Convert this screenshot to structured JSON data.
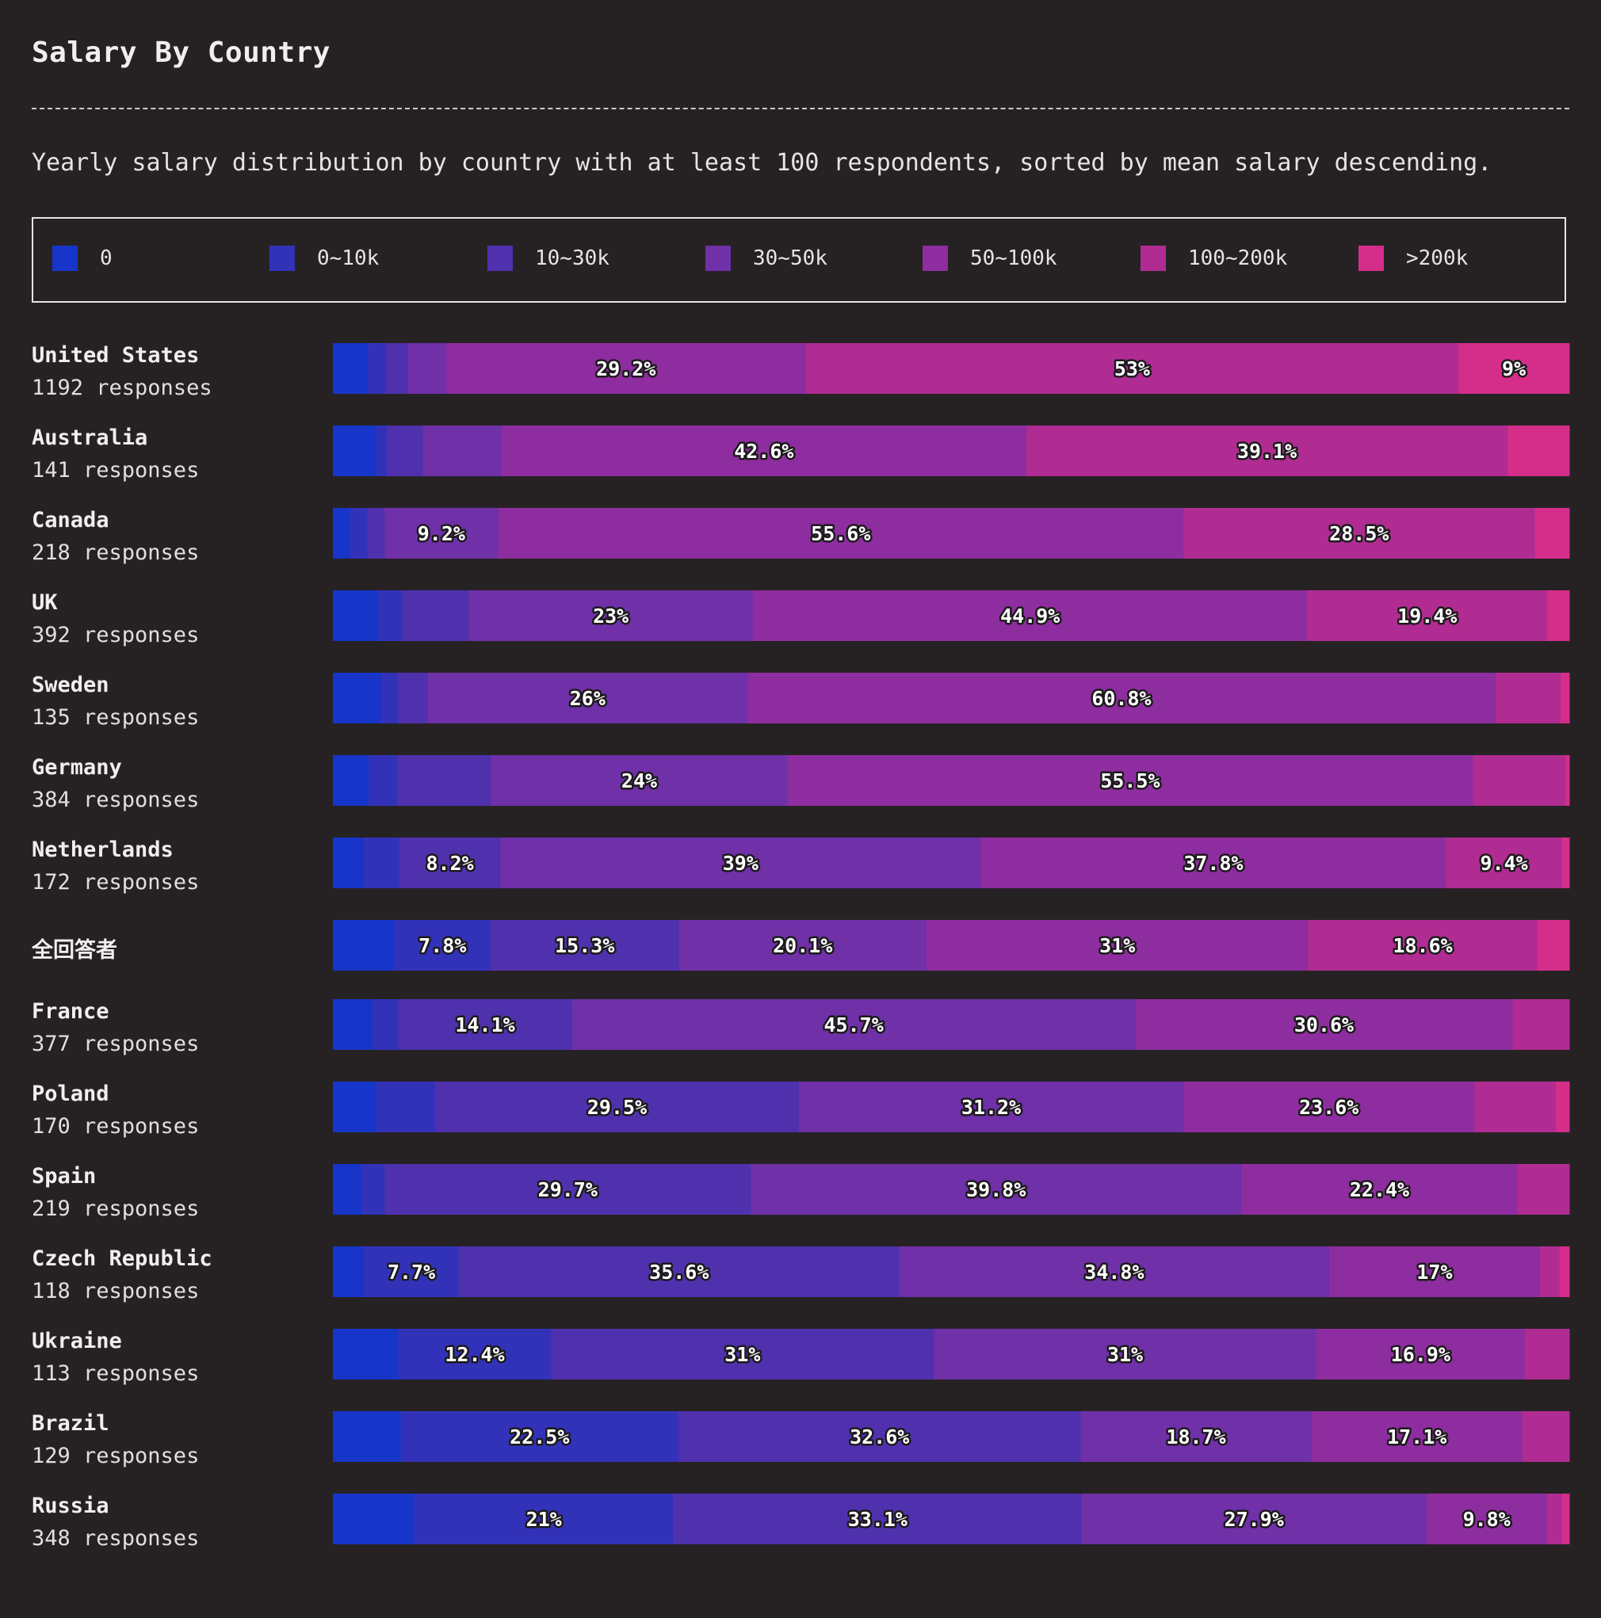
{
  "title": "Salary By Country",
  "subtitle": "Yearly salary distribution by country with at least 100 respondents, sorted by mean salary descending.",
  "colors": {
    "background": "#262224",
    "text": "#e8e3e4"
  },
  "legend": [
    {
      "label": "0",
      "color": "#1735c8"
    },
    {
      "label": "0~10k",
      "color": "#3232b9"
    },
    {
      "label": "10~30k",
      "color": "#4f31ae"
    },
    {
      "label": "30~50k",
      "color": "#6f30a8"
    },
    {
      "label": "50~100k",
      "color": "#8e2d9f"
    },
    {
      "label": "100~200k",
      "color": "#b02c92"
    },
    {
      "label": ">200k",
      "color": "#d42d8a"
    }
  ],
  "chart_data": {
    "type": "bar",
    "orientation": "horizontal",
    "stacked": true,
    "normalized": true,
    "title": "Salary By Country",
    "subtitle": "Yearly salary distribution by country with at least 100 respondents, sorted by mean salary descending.",
    "categories": [
      "0",
      "0~10k",
      "10~30k",
      "30~50k",
      "50~100k",
      "100~200k",
      ">200k"
    ],
    "legend_position": "top",
    "rows": [
      {
        "country": "United States",
        "responses": "1192 responses",
        "values": [
          2.8,
          1.5,
          1.8,
          3.1,
          29.2,
          53.0,
          9.0
        ],
        "labels": [
          "",
          "",
          "",
          "",
          "29.2%",
          "53%",
          "9%"
        ]
      },
      {
        "country": "Australia",
        "responses": "141 responses",
        "values": [
          3.5,
          0.9,
          2.9,
          6.4,
          42.6,
          39.1,
          5.0
        ],
        "labels": [
          "",
          "",
          "",
          "",
          "42.6%",
          "39.1%",
          ""
        ]
      },
      {
        "country": "Canada",
        "responses": "218 responses",
        "values": [
          1.4,
          1.4,
          1.4,
          9.2,
          55.6,
          28.5,
          2.8
        ],
        "labels": [
          "",
          "",
          "",
          "9.2%",
          "55.6%",
          "28.5%",
          ""
        ]
      },
      {
        "country": "UK",
        "responses": "392 responses",
        "values": [
          3.6,
          2.0,
          5.4,
          23.0,
          44.9,
          19.4,
          1.8
        ],
        "labels": [
          "",
          "",
          "",
          "23%",
          "44.9%",
          "19.4%",
          ""
        ]
      },
      {
        "country": "Sweden",
        "responses": "135 responses",
        "values": [
          3.9,
          1.4,
          2.4,
          26.0,
          60.8,
          5.3,
          0.7
        ],
        "labels": [
          "",
          "",
          "",
          "26%",
          "60.8%",
          "",
          ""
        ]
      },
      {
        "country": "Germany",
        "responses": "384 responses",
        "values": [
          2.9,
          2.3,
          7.6,
          24.0,
          55.5,
          7.5,
          0.3
        ],
        "labels": [
          "",
          "",
          "",
          "24%",
          "55.5%",
          "",
          ""
        ]
      },
      {
        "country": "Netherlands",
        "responses": "172 responses",
        "values": [
          2.5,
          2.9,
          8.2,
          39.0,
          37.8,
          9.4,
          0.6
        ],
        "labels": [
          "",
          "",
          "8.2%",
          "39%",
          "37.8%",
          "9.4%",
          ""
        ]
      },
      {
        "country": "全回答者",
        "responses": "",
        "values": [
          5.0,
          7.8,
          15.3,
          20.1,
          31.0,
          18.6,
          2.6
        ],
        "labels": [
          "",
          "7.8%",
          "15.3%",
          "20.1%",
          "31%",
          "18.6%",
          ""
        ]
      },
      {
        "country": "France",
        "responses": "377 responses",
        "values": [
          3.2,
          2.1,
          14.1,
          45.7,
          30.6,
          4.6,
          0.0
        ],
        "labels": [
          "",
          "",
          "14.1%",
          "45.7%",
          "30.6%",
          "",
          ""
        ]
      },
      {
        "country": "Poland",
        "responses": "170 responses",
        "values": [
          3.5,
          4.8,
          29.5,
          31.2,
          23.6,
          6.6,
          1.1
        ],
        "labels": [
          "",
          "",
          "29.5%",
          "31.2%",
          "23.6%",
          "",
          ""
        ]
      },
      {
        "country": "Spain",
        "responses": "219 responses",
        "values": [
          2.3,
          1.9,
          29.7,
          39.8,
          22.4,
          4.2,
          0.0
        ],
        "labels": [
          "",
          "",
          "29.7%",
          "39.8%",
          "22.4%",
          "",
          ""
        ]
      },
      {
        "country": "Czech Republic",
        "responses": "118 responses",
        "values": [
          2.5,
          7.7,
          35.6,
          34.8,
          17.0,
          1.6,
          0.8
        ],
        "labels": [
          "",
          "7.7%",
          "35.6%",
          "34.8%",
          "17%",
          "",
          ""
        ]
      },
      {
        "country": "Ukraine",
        "responses": "113 responses",
        "values": [
          5.3,
          12.4,
          31.0,
          31.0,
          16.9,
          3.6,
          0.0
        ],
        "labels": [
          "",
          "12.4%",
          "31%",
          "31%",
          "16.9%",
          "",
          ""
        ]
      },
      {
        "country": "Brazil",
        "responses": "129 responses",
        "values": [
          5.5,
          22.5,
          32.6,
          18.7,
          17.1,
          3.8,
          0.0
        ],
        "labels": [
          "",
          "22.5%",
          "32.6%",
          "18.7%",
          "17.1%",
          "",
          ""
        ]
      },
      {
        "country": "Russia",
        "responses": "348 responses",
        "values": [
          6.6,
          21.0,
          33.1,
          27.9,
          9.8,
          1.2,
          0.6
        ],
        "labels": [
          "",
          "21%",
          "33.1%",
          "27.9%",
          "9.8%",
          "",
          ""
        ]
      }
    ]
  }
}
